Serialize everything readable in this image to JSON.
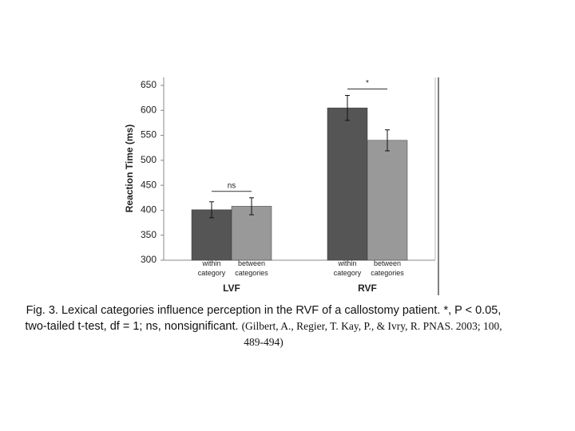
{
  "chart_data": {
    "type": "bar",
    "y_label": "Reaction Time (ms)",
    "categories": [
      "LVF",
      "RVF"
    ],
    "series": [
      {
        "name": "within category",
        "color": "#555555",
        "values": [
          401,
          605
        ],
        "errors": [
          16,
          25
        ]
      },
      {
        "name": "between categories",
        "color": "#999999",
        "values": [
          408,
          540
        ],
        "errors": [
          17,
          21
        ]
      }
    ],
    "annotations": [
      "ns",
      "*"
    ],
    "ylim": [
      300,
      650
    ],
    "yticks": [
      300,
      350,
      400,
      450,
      500,
      550,
      600,
      650
    ],
    "grid": false
  },
  "caption": {
    "text": "Fig. 3. Lexical categories influence perception in the RVF of a callostomy patient. *, P < 0.05, two-tailed t-test, df = 1; ns, nonsignificant.",
    "citation": "(Gilbert, A., Regier, T. Kay, P., & Ivry, R. PNAS. 2003; 100, 489-494)"
  }
}
